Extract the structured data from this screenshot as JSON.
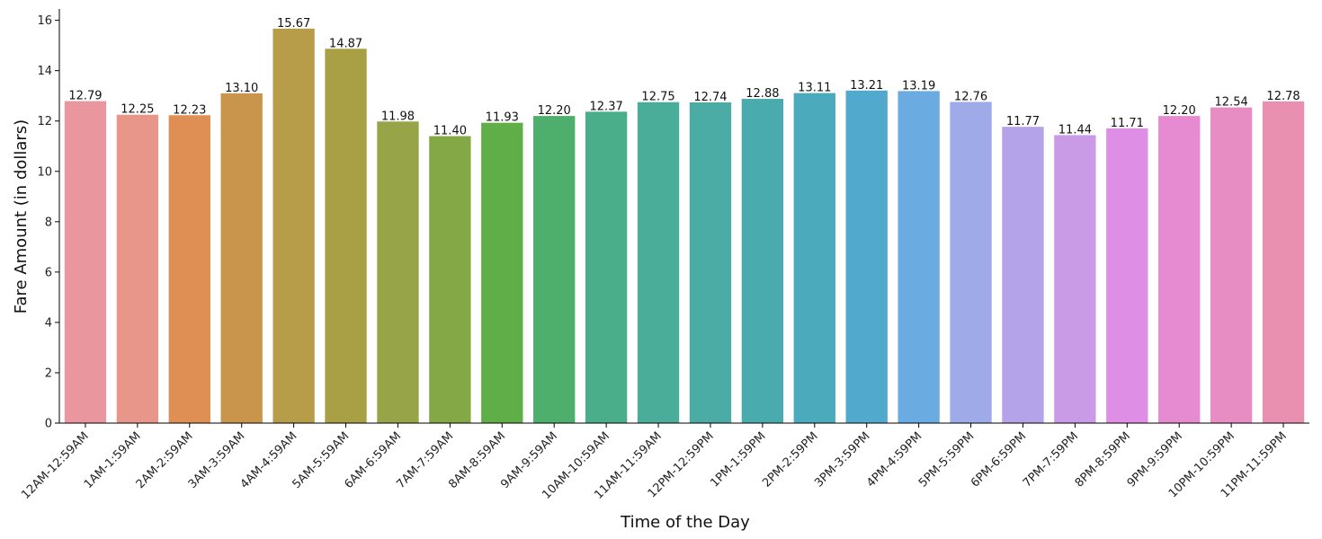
{
  "chart_data": {
    "type": "bar",
    "title": "",
    "xlabel": "Time of the Day",
    "ylabel": "Fare Amount (in dollars)",
    "ylim": [
      0,
      16.45
    ],
    "yticks": [
      0,
      2,
      4,
      6,
      8,
      10,
      12,
      14,
      16
    ],
    "grid": false,
    "legend": "none",
    "categories": [
      "12AM-12:59AM",
      "1AM-1:59AM",
      "2AM-2:59AM",
      "3AM-3:59AM",
      "4AM-4:59AM",
      "5AM-5:59AM",
      "6AM-6:59AM",
      "7AM-7:59AM",
      "8AM-8:59AM",
      "9AM-9:59AM",
      "10AM-10:59AM",
      "11AM-11:59AM",
      "12PM-12:59PM",
      "1PM-1:59PM",
      "2PM-2:59PM",
      "3PM-3:59PM",
      "4PM-4:59PM",
      "5PM-5:59PM",
      "6PM-6:59PM",
      "7PM-7:59PM",
      "8PM-8:59PM",
      "9PM-9:59PM",
      "10PM-10:59PM",
      "11PM-11:59PM"
    ],
    "values": [
      12.79,
      12.25,
      12.23,
      13.1,
      15.67,
      14.87,
      11.98,
      11.4,
      11.93,
      12.2,
      12.37,
      12.75,
      12.74,
      12.88,
      13.11,
      13.21,
      13.19,
      12.76,
      11.77,
      11.44,
      11.71,
      12.2,
      12.54,
      12.78
    ],
    "data_labels": [
      "12.79",
      "12.25",
      "12.23",
      "13.10",
      "15.67",
      "14.87",
      "11.98",
      "11.40",
      "11.93",
      "12.20",
      "12.37",
      "12.75",
      "12.74",
      "12.88",
      "13.11",
      "13.21",
      "13.19",
      "12.76",
      "11.77",
      "11.44",
      "11.71",
      "12.20",
      "12.54",
      "12.78"
    ],
    "colors": [
      "#e9969f",
      "#e8968a",
      "#e08f54",
      "#c9944c",
      "#b79c4a",
      "#a9a045",
      "#97a447",
      "#84a845",
      "#5fae47",
      "#4daf6b",
      "#4bae8a",
      "#4aad9a",
      "#4aaca5",
      "#4aabaf",
      "#4babbd",
      "#51aacd",
      "#6aabe1",
      "#9eabe8",
      "#b5a3ea",
      "#c99be6",
      "#df8ee5",
      "#e68ad2",
      "#e88dc4",
      "#e990b0"
    ]
  }
}
